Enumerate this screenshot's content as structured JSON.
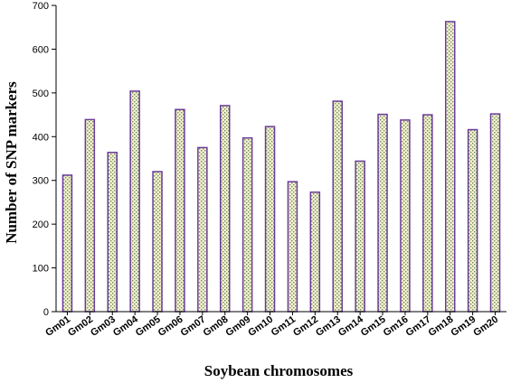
{
  "chart_data": {
    "type": "bar",
    "title": "",
    "xlabel": "Soybean chromosomes",
    "ylabel": "Number of SNP markers",
    "categories": [
      "Gm01",
      "Gm02",
      "Gm03",
      "Gm04",
      "Gm05",
      "Gm06",
      "Gm07",
      "Gm08",
      "Gm09",
      "Gm10",
      "Gm11",
      "Gm12",
      "Gm13",
      "Gm14",
      "Gm15",
      "Gm16",
      "Gm17",
      "Gm18",
      "Gm19",
      "Gm20"
    ],
    "values": [
      312,
      439,
      364,
      504,
      320,
      462,
      375,
      471,
      397,
      423,
      297,
      273,
      481,
      344,
      451,
      438,
      450,
      663,
      416,
      452
    ],
    "ylim": [
      0,
      700
    ],
    "yticks": [
      "0",
      "100",
      "200",
      "300",
      "400",
      "500",
      "600",
      "700"
    ],
    "grid": false,
    "legend": "none",
    "colors": {
      "bar_outline": "#6a3b9a",
      "bar_fill_light": "#f4f1cf",
      "bar_fill_dot": "#6c8c5a",
      "axis": "#000000"
    }
  }
}
